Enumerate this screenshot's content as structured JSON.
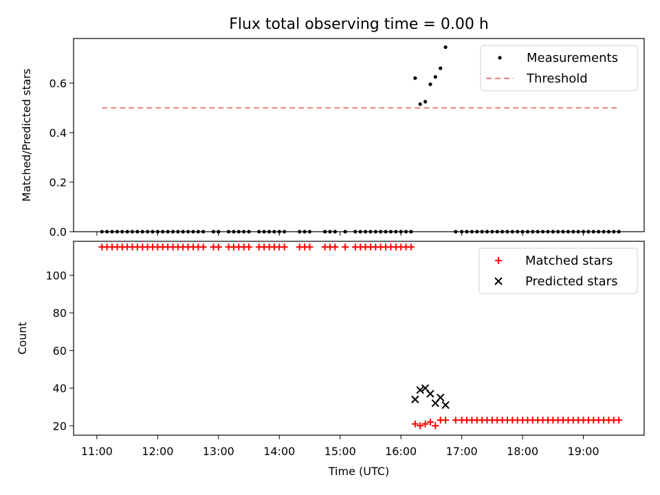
{
  "chart_data": {
    "title": "Flux total observing time = 0.00 h",
    "xlabel": "Time (UTC)",
    "x_ticks": [
      "11:00",
      "12:00",
      "13:00",
      "14:00",
      "15:00",
      "16:00",
      "17:00",
      "18:00",
      "19:00"
    ],
    "x_range": [
      "10:37",
      "20:00"
    ],
    "panels": [
      {
        "type": "scatter",
        "ylabel": "Matched/Predicted stars",
        "ylim": [
          0,
          0.78
        ],
        "yticks": [
          "0.0",
          "0.2",
          "0.4",
          "0.6"
        ],
        "legend_position": "top-right",
        "legend": [
          "Measurements",
          "Threshold"
        ],
        "series": [
          {
            "name": "Measurements",
            "style": "dot",
            "color": "#000000",
            "x": [
              "11:05",
              "11:10",
              "11:15",
              "11:20",
              "11:25",
              "11:30",
              "11:35",
              "11:40",
              "11:45",
              "11:50",
              "11:55",
              "12:00",
              "12:05",
              "12:10",
              "12:15",
              "12:20",
              "12:25",
              "12:30",
              "12:35",
              "12:40",
              "12:45",
              "12:55",
              "13:00",
              "13:10",
              "13:15",
              "13:20",
              "13:25",
              "13:30",
              "13:40",
              "13:45",
              "13:50",
              "13:55",
              "14:00",
              "14:05",
              "14:20",
              "14:25",
              "14:30",
              "14:45",
              "14:50",
              "14:55",
              "15:05",
              "15:15",
              "15:20",
              "15:25",
              "15:30",
              "15:35",
              "15:40",
              "15:45",
              "15:50",
              "15:55",
              "16:00",
              "16:05",
              "16:10",
              "16:14",
              "16:19",
              "16:24",
              "16:29",
              "16:34",
              "16:39",
              "16:44",
              "16:54",
              "17:00",
              "17:05",
              "17:10",
              "17:15",
              "17:20",
              "17:25",
              "17:30",
              "17:35",
              "17:40",
              "17:45",
              "17:50",
              "17:55",
              "18:00",
              "18:05",
              "18:10",
              "18:15",
              "18:20",
              "18:25",
              "18:30",
              "18:35",
              "18:40",
              "18:45",
              "18:50",
              "18:55",
              "19:00",
              "19:05",
              "19:10",
              "19:15",
              "19:20",
              "19:25",
              "19:30",
              "19:35"
            ],
            "y": [
              0,
              0,
              0,
              0,
              0,
              0,
              0,
              0,
              0,
              0,
              0,
              0,
              0,
              0,
              0,
              0,
              0,
              0,
              0,
              0,
              0,
              0,
              0,
              0,
              0,
              0,
              0,
              0,
              0,
              0,
              0,
              0,
              0,
              0,
              0,
              0,
              0,
              0,
              0,
              0,
              0,
              0,
              0,
              0,
              0,
              0,
              0,
              0,
              0,
              0,
              0,
              0,
              0,
              0.62,
              0.515,
              0.525,
              0.595,
              0.625,
              0.66,
              0.745,
              0,
              0,
              0,
              0,
              0,
              0,
              0,
              0,
              0,
              0,
              0,
              0,
              0,
              0,
              0,
              0,
              0,
              0,
              0,
              0,
              0,
              0,
              0,
              0,
              0,
              0,
              0,
              0,
              0,
              0,
              0,
              0,
              0
            ]
          },
          {
            "name": "Threshold",
            "style": "dashed-line",
            "color": "#f08080",
            "x": [
              "11:05",
              "19:35"
            ],
            "y": [
              0.5,
              0.5
            ]
          }
        ]
      },
      {
        "type": "scatter",
        "ylabel": "Count",
        "ylim": [
          15,
          118
        ],
        "yticks": [
          "20",
          "40",
          "60",
          "80",
          "100"
        ],
        "legend_position": "top-right",
        "legend": [
          "Matched stars",
          "Predicted stars"
        ],
        "series": [
          {
            "name": "Matched stars",
            "style": "plus",
            "color": "#ff0000",
            "x": [
              "11:05",
              "11:10",
              "11:15",
              "11:20",
              "11:25",
              "11:30",
              "11:35",
              "11:40",
              "11:45",
              "11:50",
              "11:55",
              "12:00",
              "12:05",
              "12:10",
              "12:15",
              "12:20",
              "12:25",
              "12:30",
              "12:35",
              "12:40",
              "12:45",
              "12:55",
              "13:00",
              "13:10",
              "13:15",
              "13:20",
              "13:25",
              "13:30",
              "13:40",
              "13:45",
              "13:50",
              "13:55",
              "14:00",
              "14:05",
              "14:20",
              "14:25",
              "14:30",
              "14:45",
              "14:50",
              "14:55",
              "15:05",
              "15:15",
              "15:20",
              "15:25",
              "15:30",
              "15:35",
              "15:40",
              "15:45",
              "15:50",
              "15:55",
              "16:00",
              "16:05",
              "16:10",
              "16:14",
              "16:19",
              "16:24",
              "16:29",
              "16:34",
              "16:39",
              "16:44",
              "16:54",
              "17:00",
              "17:05",
              "17:10",
              "17:15",
              "17:20",
              "17:25",
              "17:30",
              "17:35",
              "17:40",
              "17:45",
              "17:50",
              "17:55",
              "18:00",
              "18:05",
              "18:10",
              "18:15",
              "18:20",
              "18:25",
              "18:30",
              "18:35",
              "18:40",
              "18:45",
              "18:50",
              "18:55",
              "19:00",
              "19:05",
              "19:10",
              "19:15",
              "19:20",
              "19:25",
              "19:30",
              "19:35"
            ],
            "y": [
              115,
              115,
              115,
              115,
              115,
              115,
              115,
              115,
              115,
              115,
              115,
              115,
              115,
              115,
              115,
              115,
              115,
              115,
              115,
              115,
              115,
              115,
              115,
              115,
              115,
              115,
              115,
              115,
              115,
              115,
              115,
              115,
              115,
              115,
              115,
              115,
              115,
              115,
              115,
              115,
              115,
              115,
              115,
              115,
              115,
              115,
              115,
              115,
              115,
              115,
              115,
              115,
              115,
              21,
              20,
              21,
              22,
              20,
              23,
              23,
              23,
              23,
              23,
              23,
              23,
              23,
              23,
              23,
              23,
              23,
              23,
              23,
              23,
              23,
              23,
              23,
              23,
              23,
              23,
              23,
              23,
              23,
              23,
              23,
              23,
              23,
              23,
              23,
              23,
              23,
              23,
              23,
              23
            ]
          },
          {
            "name": "Predicted stars",
            "style": "x",
            "color": "#000000",
            "x": [
              "16:14",
              "16:19",
              "16:24",
              "16:29",
              "16:34",
              "16:39",
              "16:44"
            ],
            "y": [
              34,
              39,
              40,
              37,
              32,
              35,
              31
            ]
          }
        ]
      }
    ]
  }
}
